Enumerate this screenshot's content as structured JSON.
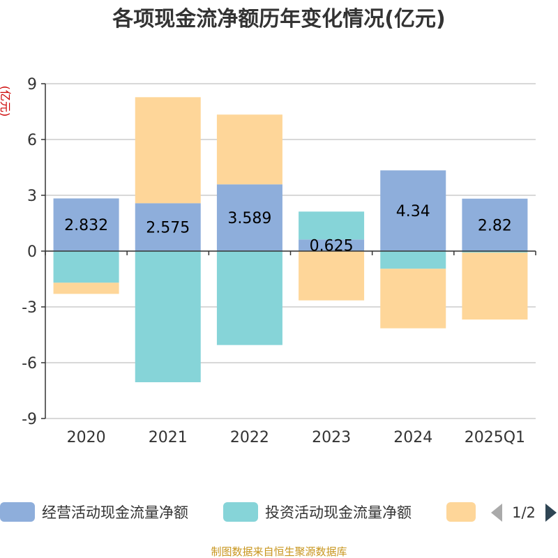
{
  "chart_data": {
    "type": "bar",
    "stacked": true,
    "title": "各项现金流净额历年变化情况(亿元)",
    "unit_label": "(亿元)",
    "categories": [
      "2020",
      "2021",
      "2022",
      "2023",
      "2024",
      "2025Q1"
    ],
    "ylim": [
      -9,
      9
    ],
    "yticks": [
      9,
      6,
      3,
      0,
      -3,
      -6,
      -9
    ],
    "grid": true,
    "series": [
      {
        "name": "经营活动现金流量净额",
        "color": "#8eaedb",
        "values": [
          2.832,
          2.575,
          3.589,
          0.625,
          4.34,
          2.82
        ],
        "labels": [
          "2.832",
          "2.575",
          "3.589",
          "0.625",
          "4.34",
          "2.82"
        ]
      },
      {
        "name": "投资活动现金流量净额",
        "color": "#86d4d8",
        "values": [
          -1.7,
          -7.05,
          -5.05,
          1.5,
          -0.95,
          -0.08
        ]
      },
      {
        "name": "",
        "color": "#fed699",
        "values": [
          -0.6,
          5.7,
          3.75,
          -2.65,
          -3.2,
          -3.6
        ]
      }
    ]
  },
  "legend": {
    "pager": "1/2",
    "prev_icon": "triangle-left",
    "next_icon": "triangle-right"
  },
  "source": "制图数据来自恒生聚源数据库"
}
